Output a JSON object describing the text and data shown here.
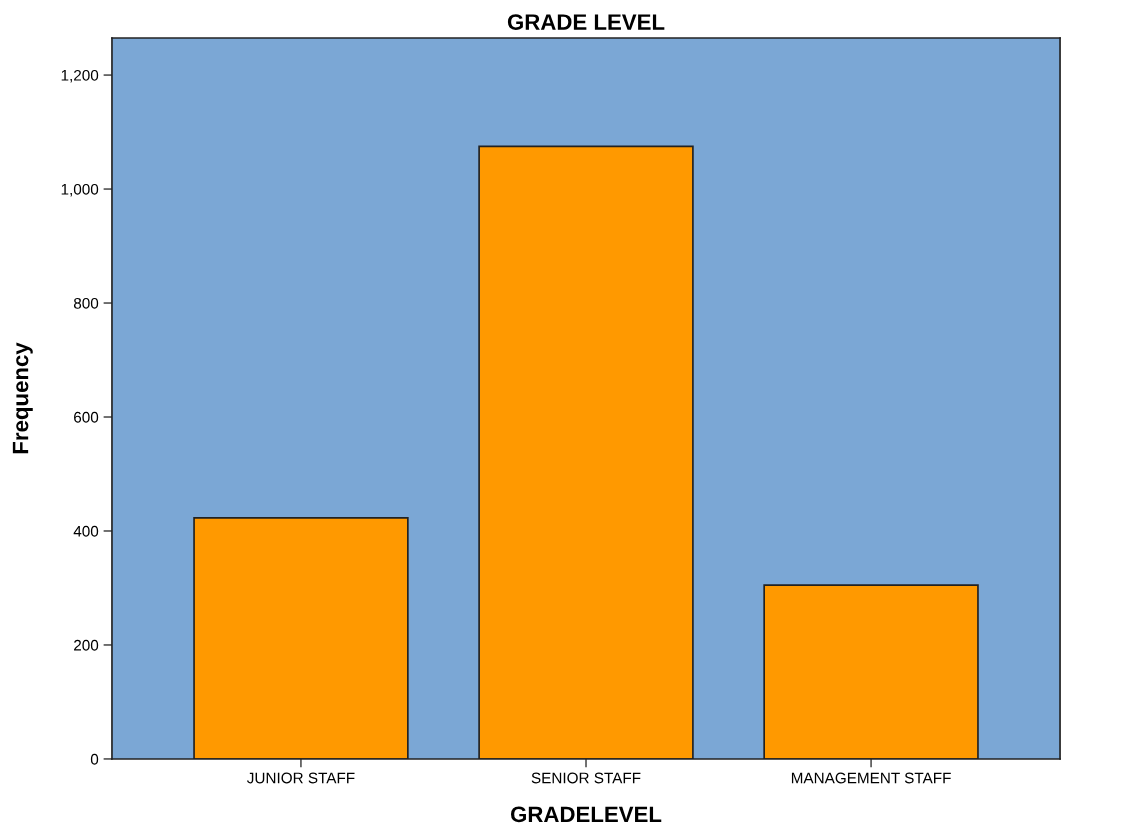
{
  "chart_data": {
    "type": "bar",
    "title": "GRADE LEVEL",
    "xlabel": "GRADELEVEL",
    "ylabel": "Frequency",
    "categories": [
      "JUNIOR STAFF",
      "SENIOR STAFF",
      "MANAGEMENT STAFF"
    ],
    "values": [
      423,
      1075,
      305
    ],
    "color": "#ff9900",
    "ylim": [
      0,
      1265
    ],
    "yticks": [
      0,
      200,
      400,
      600,
      800,
      {
        "value": 1000,
        "label": "1,000"
      },
      {
        "value": 1200,
        "label": "1,200"
      }
    ],
    "grid": false
  }
}
